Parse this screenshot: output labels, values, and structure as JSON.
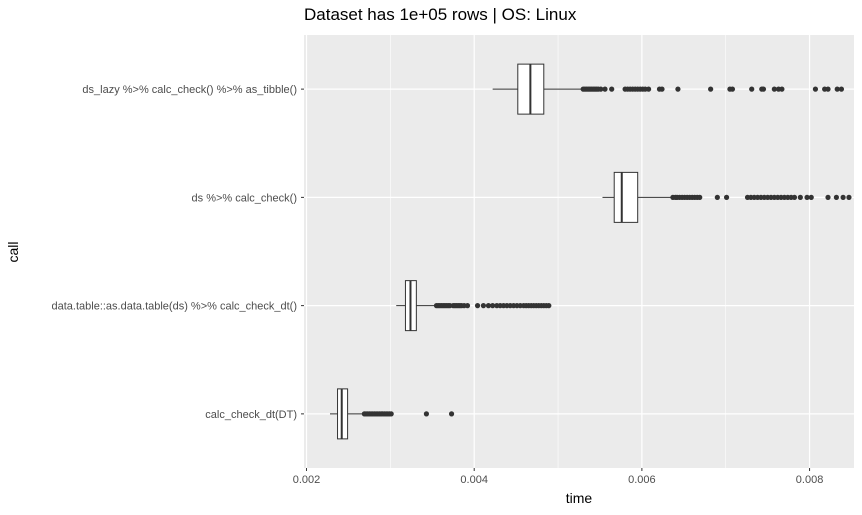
{
  "chart_data": {
    "type": "boxplot",
    "orientation": "horizontal",
    "title": "Dataset has 1e+05 rows | OS: Linux",
    "xlabel": "time",
    "ylabel": "call",
    "xlim": [
      0.00197,
      0.00853
    ],
    "x_ticks": [
      0.002,
      0.004,
      0.006,
      0.008
    ],
    "x_tick_labels": [
      "0.002",
      "0.004",
      "0.006",
      "0.008"
    ],
    "grid": true,
    "colors": {
      "panel": "#ebebeb",
      "grid_major": "#ffffff",
      "box_fill": "#ffffff",
      "box_stroke": "#333333",
      "outlier": "#333333"
    },
    "series": [
      {
        "name": "ds_lazy %>% calc_check() %>% as_tibble()",
        "whisker_low": 0.00422,
        "q1": 0.00452,
        "median": 0.00467,
        "q3": 0.00483,
        "whisker_high": 0.00529,
        "outliers": [
          0.0053,
          0.00532,
          0.00534,
          0.00536,
          0.00538,
          0.0054,
          0.00542,
          0.00544,
          0.00546,
          0.00548,
          0.00551,
          0.00556,
          0.00564,
          0.0058,
          0.00583,
          0.00586,
          0.00589,
          0.00592,
          0.00595,
          0.00598,
          0.00601,
          0.00604,
          0.00608,
          0.00621,
          0.00624,
          0.00643,
          0.00682,
          0.00705,
          0.00708,
          0.00731,
          0.00743,
          0.00745,
          0.00758,
          0.00763,
          0.00767,
          0.00807,
          0.00818,
          0.00822,
          0.00833,
          0.00838
        ]
      },
      {
        "name": "ds %>% calc_check()",
        "whisker_low": 0.00553,
        "q1": 0.00567,
        "median": 0.00576,
        "q3": 0.00595,
        "whisker_high": 0.00636,
        "outliers": [
          0.00637,
          0.0064,
          0.00642,
          0.00645,
          0.00648,
          0.00651,
          0.00654,
          0.00657,
          0.0066,
          0.00663,
          0.00666,
          0.00669,
          0.0069,
          0.00701,
          0.00726,
          0.0073,
          0.00734,
          0.00738,
          0.00742,
          0.00746,
          0.0075,
          0.00754,
          0.00758,
          0.00762,
          0.00766,
          0.0077,
          0.00774,
          0.00778,
          0.00782,
          0.00789,
          0.00797,
          0.00802,
          0.00822,
          0.00832,
          0.0084,
          0.00847
        ]
      },
      {
        "name": "data.table::as.data.table(ds) %>% calc_check_dt()",
        "whisker_low": 0.00307,
        "q1": 0.00318,
        "median": 0.00324,
        "q3": 0.00331,
        "whisker_high": 0.00354,
        "outliers": [
          0.00355,
          0.00357,
          0.00359,
          0.00361,
          0.00363,
          0.00365,
          0.00367,
          0.00369,
          0.00371,
          0.00375,
          0.00377,
          0.00379,
          0.00381,
          0.00383,
          0.00385,
          0.00388,
          0.00392,
          0.00404,
          0.00411,
          0.00417,
          0.00422,
          0.00427,
          0.00431,
          0.00435,
          0.00439,
          0.00443,
          0.00447,
          0.00451,
          0.00455,
          0.00459,
          0.00462,
          0.00465,
          0.00468,
          0.00471,
          0.00474,
          0.00477,
          0.0048,
          0.00483,
          0.00486,
          0.00489
        ]
      },
      {
        "name": "calc_check_dt(DT)",
        "whisker_low": 0.00228,
        "q1": 0.00237,
        "median": 0.00242,
        "q3": 0.00249,
        "whisker_high": 0.00268,
        "outliers": [
          0.00269,
          0.00271,
          0.00273,
          0.00275,
          0.00277,
          0.00279,
          0.00281,
          0.00283,
          0.00285,
          0.00287,
          0.00289,
          0.00291,
          0.00293,
          0.00295,
          0.00297,
          0.00299,
          0.00301,
          0.00343,
          0.00373
        ]
      }
    ]
  }
}
